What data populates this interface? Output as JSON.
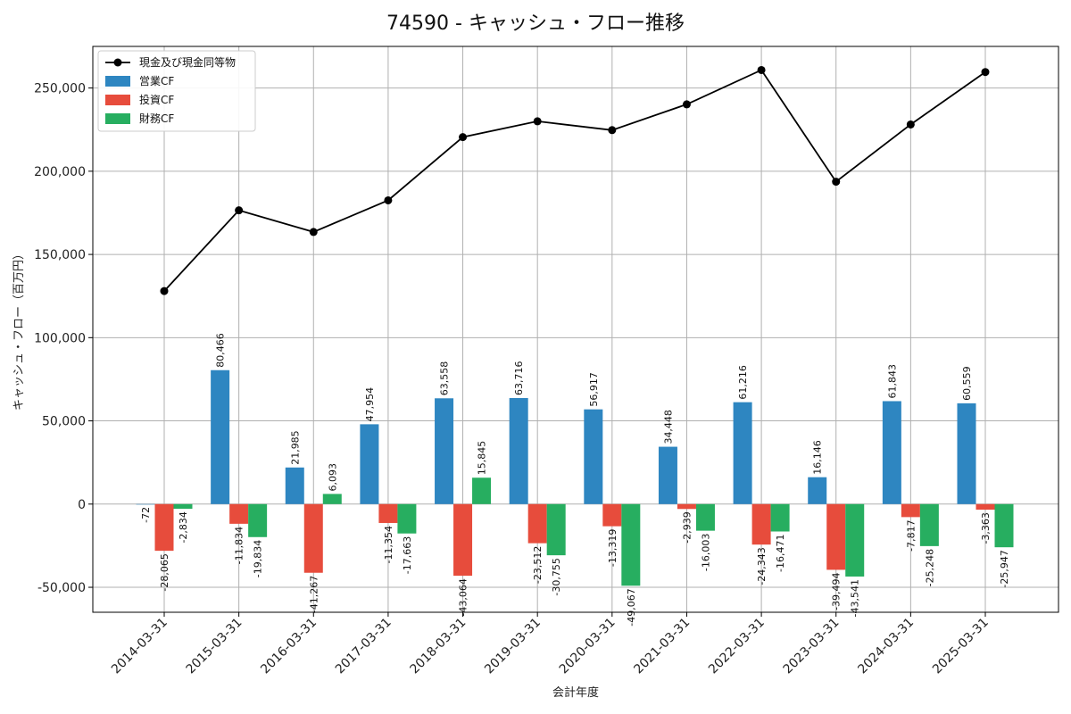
{
  "chart_data": {
    "type": "bar",
    "title": "74590 - キャッシュ・フロー推移",
    "xlabel": "会計年度",
    "ylabel": "キャッシュ・フロー（百万円）",
    "categories": [
      "2014-03-31",
      "2015-03-31",
      "2016-03-31",
      "2017-03-31",
      "2018-03-31",
      "2019-03-31",
      "2020-03-31",
      "2021-03-31",
      "2022-03-31",
      "2023-03-31",
      "2024-03-31",
      "2025-03-31"
    ],
    "ylim": [
      -65000,
      275000
    ],
    "yticks": [
      -50000,
      0,
      50000,
      100000,
      150000,
      200000,
      250000
    ],
    "ytick_labels": [
      "-50,000",
      "0",
      "50,000",
      "100,000",
      "150,000",
      "200,000",
      "250,000"
    ],
    "grid": true,
    "legend_position": "top-left",
    "series": [
      {
        "name": "現金及び現金同等物",
        "kind": "line",
        "color": "#000000",
        "values": [
          128000,
          176500,
          163500,
          182500,
          220500,
          230000,
          224700,
          240200,
          260800,
          193700,
          228100,
          259600
        ]
      },
      {
        "name": "営業CF",
        "kind": "bar",
        "color": "#2e86c1",
        "values": [
          -72,
          80466,
          21985,
          47954,
          63558,
          63716,
          56917,
          34448,
          61216,
          16146,
          61843,
          60559
        ],
        "labels": [
          "-72",
          "80,466",
          "21,985",
          "47,954",
          "63,558",
          "63,716",
          "56,917",
          "34,448",
          "61,216",
          "16,146",
          "61,843",
          "60,559"
        ]
      },
      {
        "name": "投資CF",
        "kind": "bar",
        "color": "#e74c3c",
        "values": [
          -28065,
          -11834,
          -41267,
          -11354,
          -43064,
          -23512,
          -13319,
          -2939,
          -24343,
          -39494,
          -7817,
          -3363
        ],
        "labels": [
          "-28,065",
          "-11,834",
          "-41,267",
          "-11,354",
          "-43,064",
          "-23,512",
          "-13,319",
          "-2,939",
          "-24,343",
          "-39,494",
          "-7,817",
          "-3,363"
        ]
      },
      {
        "name": "財務CF",
        "kind": "bar",
        "color": "#27ae60",
        "values": [
          -2834,
          -19834,
          6093,
          -17663,
          15845,
          -30755,
          -49067,
          -16003,
          -16471,
          -43541,
          -25248,
          -25947
        ],
        "labels": [
          "-2,834",
          "-19,834",
          "6,093",
          "-17,663",
          "15,845",
          "-30,755",
          "-49,067",
          "-16,003",
          "-16,471",
          "-43,541",
          "-25,248",
          "-25,947"
        ]
      }
    ]
  }
}
